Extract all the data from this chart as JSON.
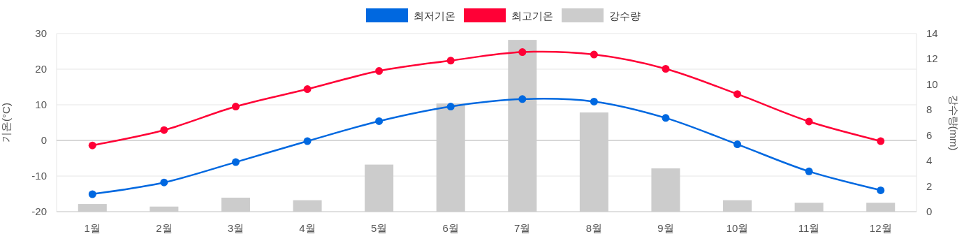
{
  "chart_data": {
    "type": "line",
    "categories": [
      "1월",
      "2월",
      "3월",
      "4월",
      "5월",
      "6월",
      "7월",
      "8월",
      "9월",
      "10월",
      "11월",
      "12월"
    ],
    "ylabel": "기온(°C)",
    "y2label": "강수량(mm)",
    "series": [
      {
        "name": "최저기온",
        "color": "#0068e0",
        "values": [
          -15.1,
          -11.8,
          -6.1,
          -0.2,
          5.4,
          9.5,
          11.6,
          10.9,
          6.3,
          -1.1,
          -8.7,
          -14.0
        ]
      },
      {
        "name": "최고기온",
        "color": "#ff0036",
        "values": [
          -1.4,
          2.9,
          9.5,
          14.4,
          19.5,
          22.4,
          24.8,
          24.1,
          20.1,
          13.0,
          5.3,
          -0.2
        ]
      },
      {
        "name": "강수량",
        "color": "#cccccc",
        "type": "bar",
        "axis": "y2",
        "values": [
          0.6,
          0.4,
          1.1,
          0.9,
          3.7,
          8.5,
          13.5,
          7.8,
          3.4,
          0.9,
          0.7,
          0.7
        ]
      }
    ],
    "ylim": [
      -20,
      30
    ],
    "yticks": [
      -20,
      -10,
      0,
      10,
      20,
      30
    ],
    "y2lim": [
      0,
      14
    ],
    "y2ticks": [
      0,
      2,
      4,
      6,
      8,
      10,
      12,
      14
    ],
    "grid": "y",
    "legend": "top",
    "marker": "circle",
    "line_style": "solid"
  }
}
